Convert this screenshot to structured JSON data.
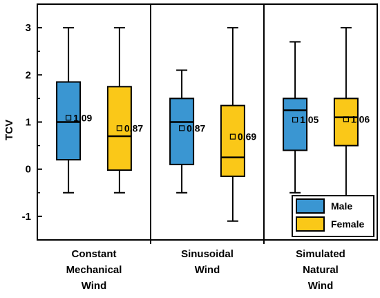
{
  "chart_data": {
    "type": "box",
    "ylabel": "TCV",
    "ylim": [
      -1.5,
      3.5
    ],
    "yticks": [
      "-1",
      "0",
      "1",
      "2",
      "3"
    ],
    "categories": [
      {
        "lines": [
          "Constant",
          "Mechanical",
          "Wind"
        ]
      },
      {
        "lines": [
          "Sinusoidal",
          "Wind"
        ]
      },
      {
        "lines": [
          "Simulated",
          "Natural",
          "Wind"
        ]
      }
    ],
    "series": [
      {
        "name": "Male",
        "color": "#3A96D2",
        "boxes": [
          {
            "whisker_low": -0.5,
            "q1": 0.2,
            "median": 1.0,
            "q3": 1.85,
            "whisker_high": 3.0,
            "mean": 1.09,
            "mean_label": "1.09"
          },
          {
            "whisker_low": -0.5,
            "q1": 0.1,
            "median": 1.0,
            "q3": 1.5,
            "whisker_high": 2.1,
            "mean": 0.87,
            "mean_label": "0.87"
          },
          {
            "whisker_low": -0.5,
            "q1": 0.4,
            "median": 1.25,
            "q3": 1.5,
            "whisker_high": 2.7,
            "mean": 1.05,
            "mean_label": "1.05"
          }
        ]
      },
      {
        "name": "Female",
        "color": "#FAC818",
        "boxes": [
          {
            "whisker_low": -0.5,
            "q1": -0.02,
            "median": 0.7,
            "q3": 1.75,
            "whisker_high": 3.0,
            "mean": 0.87,
            "mean_label": "0.87"
          },
          {
            "whisker_low": -1.1,
            "q1": -0.15,
            "median": 0.25,
            "q3": 1.35,
            "whisker_high": 3.0,
            "mean": 0.69,
            "mean_label": "0.69"
          },
          {
            "whisker_low": -0.6,
            "q1": 0.5,
            "median": 1.1,
            "q3": 1.5,
            "whisker_high": 3.0,
            "mean": 1.06,
            "mean_label": "1.06"
          }
        ]
      }
    ],
    "legend_position": "bottom-right",
    "grid": false
  }
}
